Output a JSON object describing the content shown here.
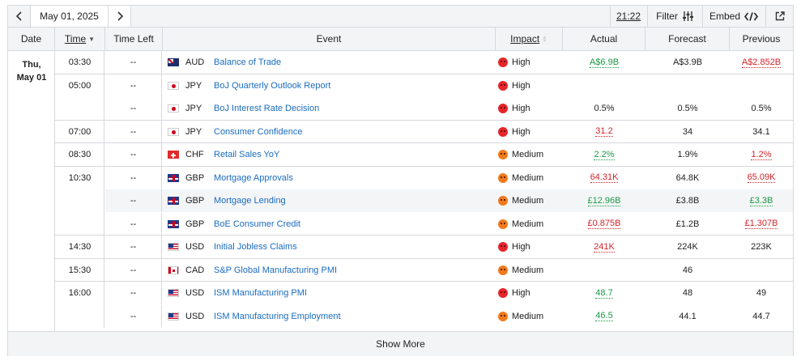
{
  "toolbar": {
    "date": "May 01, 2025",
    "time": "21:22",
    "filter_label": "Filter",
    "embed_label": "Embed",
    "icons": {
      "prev": "chevron-left-icon",
      "next": "chevron-right-icon",
      "filter": "sliders-icon",
      "embed": "code-icon",
      "external": "external-link-icon"
    }
  },
  "columns": {
    "date": "Date",
    "time": "Time",
    "time_left": "Time Left",
    "event": "Event",
    "impact": "Impact",
    "actual": "Actual",
    "forecast": "Forecast",
    "previous": "Previous"
  },
  "day": {
    "line1": "Thu,",
    "line2": "May 01"
  },
  "groups": [
    {
      "time": "03:30",
      "rows": [
        {
          "left": "--",
          "flag": "au",
          "currency": "AUD",
          "event": "Balance of Trade",
          "impact": "High",
          "actual": "A$6.9B",
          "actual_color": "green",
          "forecast": "A$3.9B",
          "previous": "A$2.852B",
          "previous_color": "red"
        }
      ]
    },
    {
      "time": "05:00",
      "rows": [
        {
          "left": "--",
          "flag": "jp",
          "currency": "JPY",
          "event": "BoJ Quarterly Outlook Report",
          "impact": "High",
          "actual": "",
          "forecast": "",
          "previous": ""
        },
        {
          "left": "--",
          "flag": "jp",
          "currency": "JPY",
          "event": "BoJ Interest Rate Decision",
          "impact": "High",
          "actual": "0.5%",
          "forecast": "0.5%",
          "previous": "0.5%"
        }
      ]
    },
    {
      "time": "07:00",
      "rows": [
        {
          "left": "--",
          "flag": "jp",
          "currency": "JPY",
          "event": "Consumer Confidence",
          "impact": "High",
          "actual": "31.2",
          "actual_color": "red",
          "forecast": "34",
          "previous": "34.1"
        }
      ]
    },
    {
      "time": "08:30",
      "rows": [
        {
          "left": "--",
          "flag": "ch",
          "currency": "CHF",
          "event": "Retail Sales YoY",
          "impact": "Medium",
          "actual": "2.2%",
          "actual_color": "green",
          "forecast": "1.9%",
          "previous": "1.2%",
          "previous_color": "red"
        }
      ]
    },
    {
      "time": "10:30",
      "rows": [
        {
          "left": "--",
          "flag": "gb",
          "currency": "GBP",
          "event": "Mortgage Approvals",
          "impact": "Medium",
          "actual": "64.31K",
          "actual_color": "red",
          "forecast": "64.8K",
          "previous": "65.09K",
          "previous_color": "red"
        },
        {
          "left": "--",
          "flag": "gb",
          "currency": "GBP",
          "event": "Mortgage Lending",
          "impact": "Medium",
          "actual": "£12.96B",
          "actual_color": "green",
          "forecast": "£3.8B",
          "previous": "£3.3B",
          "previous_color": "green",
          "alt": true
        },
        {
          "left": "--",
          "flag": "gb",
          "currency": "GBP",
          "event": "BoE Consumer Credit",
          "impact": "Medium",
          "actual": "£0.875B",
          "actual_color": "red",
          "forecast": "£1.2B",
          "previous": "£1.307B",
          "previous_color": "red"
        }
      ]
    },
    {
      "time": "14:30",
      "rows": [
        {
          "left": "--",
          "flag": "us",
          "currency": "USD",
          "event": "Initial Jobless Claims",
          "impact": "High",
          "actual": "241K",
          "actual_color": "red",
          "forecast": "224K",
          "previous": "223K"
        }
      ]
    },
    {
      "time": "15:30",
      "rows": [
        {
          "left": "--",
          "flag": "ca",
          "currency": "CAD",
          "event": "S&P Global Manufacturing PMI",
          "impact": "Medium",
          "actual": "",
          "forecast": "46",
          "previous": ""
        }
      ]
    },
    {
      "time": "16:00",
      "rows": [
        {
          "left": "--",
          "flag": "us",
          "currency": "USD",
          "event": "ISM Manufacturing PMI",
          "impact": "High",
          "actual": "48.7",
          "actual_color": "green",
          "forecast": "48",
          "previous": "49"
        },
        {
          "left": "--",
          "flag": "us",
          "currency": "USD",
          "event": "ISM Manufacturing Employment",
          "impact": "Medium",
          "actual": "46.5",
          "actual_color": "green",
          "forecast": "44.1",
          "previous": "44.7"
        }
      ]
    }
  ],
  "show_more": "Show More"
}
